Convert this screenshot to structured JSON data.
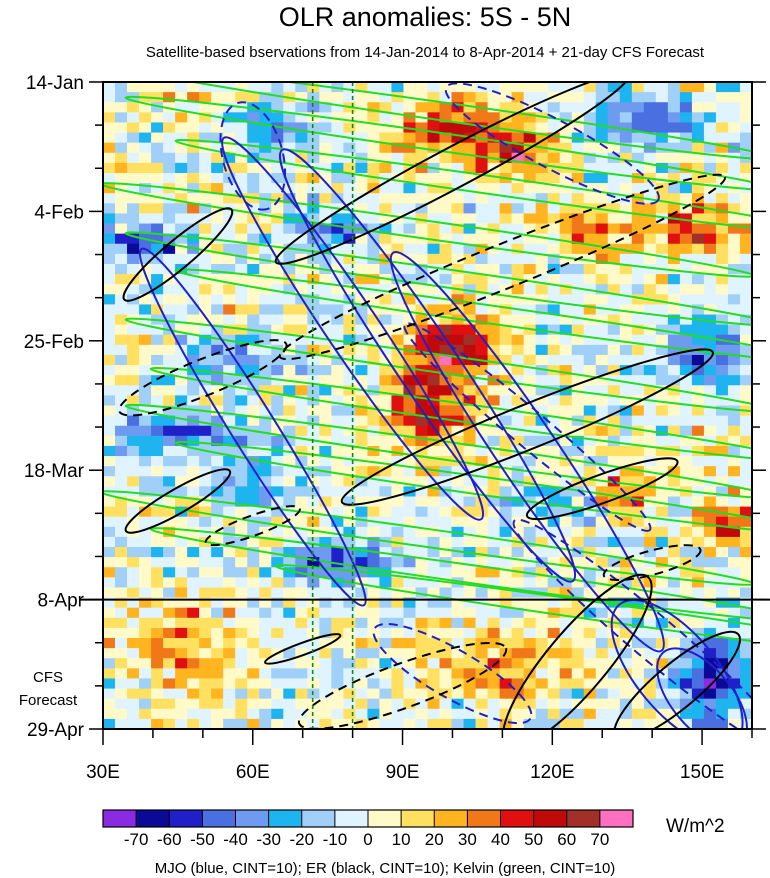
{
  "chart_data": {
    "type": "heatmap",
    "title": "OLR anomalies: 5S - 5N",
    "subtitle": "Satellite-based bservations from 14-Jan-2014 to 8-Apr-2014 + 21-day CFS Forecast",
    "x_ticks": [
      "30E",
      "60E",
      "90E",
      "120E",
      "150E"
    ],
    "x_tick_values": [
      30,
      60,
      90,
      120,
      150
    ],
    "xlim": [
      30,
      160
    ],
    "y_ticks": [
      "14-Jan",
      "4-Feb",
      "25-Feb",
      "18-Mar",
      "8-Apr",
      "29-Apr"
    ],
    "y_tick_days": [
      0,
      21,
      42,
      63,
      84,
      105
    ],
    "ylim_days": [
      0,
      105
    ],
    "y_axis_inverted": true,
    "forecast_label_lines": [
      "CFS",
      "Forecast"
    ],
    "forecast_start": "8-Apr",
    "reference_lines_x": [
      72,
      80
    ],
    "colorbar": {
      "unit": "W/m^2",
      "levels": [
        -70,
        -60,
        -50,
        -40,
        -30,
        -20,
        -10,
        0,
        10,
        20,
        30,
        40,
        50,
        60,
        70
      ],
      "level_labels": [
        "-70",
        "-60",
        "-50",
        "-40",
        "-30",
        "-20",
        "-10",
        "0",
        "10",
        "20",
        "30",
        "40",
        "50",
        "60",
        "70"
      ],
      "colors": [
        "#8a2be2",
        "#0a0a96",
        "#2020c8",
        "#4a6fe0",
        "#6e9bf0",
        "#1eb4f0",
        "#a0d0f8",
        "#e0f4ff",
        "#fffac8",
        "#ffe060",
        "#ffb420",
        "#f07818",
        "#e01010",
        "#c00a0a",
        "#a03028",
        "#ff70c0"
      ]
    },
    "overlay_caption": "MJO (blue, CINT=10); ER (black, CINT=10); Kelvin (green, CINT=10)",
    "overlays": [
      {
        "name": "MJO",
        "color": "#2020c8"
      },
      {
        "name": "ER",
        "color": "#000000"
      },
      {
        "name": "Kelvin",
        "color": "#22dd22"
      }
    ],
    "anomaly_field": {
      "baseline_noise": 24,
      "features": [
        {
          "lon": 100,
          "day": 8,
          "value": 55,
          "dlon": 10,
          "dday": 4
        },
        {
          "lon": 112,
          "day": 12,
          "value": 45,
          "dlon": 8,
          "dday": 4
        },
        {
          "lon": 64,
          "day": 7,
          "value": -35,
          "dlon": 6,
          "dday": 4
        },
        {
          "lon": 38,
          "day": 26,
          "value": -60,
          "dlon": 8,
          "dday": 3
        },
        {
          "lon": 75,
          "day": 24,
          "value": -45,
          "dlon": 8,
          "dday": 3
        },
        {
          "lon": 130,
          "day": 24,
          "value": 35,
          "dlon": 10,
          "dday": 4
        },
        {
          "lon": 150,
          "day": 24,
          "value": 40,
          "dlon": 8,
          "dday": 4
        },
        {
          "lon": 100,
          "day": 42,
          "value": 60,
          "dlon": 9,
          "dday": 5
        },
        {
          "lon": 95,
          "day": 52,
          "value": 58,
          "dlon": 8,
          "dday": 6
        },
        {
          "lon": 150,
          "day": 44,
          "value": -50,
          "dlon": 8,
          "dday": 4
        },
        {
          "lon": 45,
          "day": 57,
          "value": -55,
          "dlon": 12,
          "dday": 3
        },
        {
          "lon": 55,
          "day": 45,
          "value": -35,
          "dlon": 10,
          "dday": 4
        },
        {
          "lon": 78,
          "day": 78,
          "value": -60,
          "dlon": 12,
          "dday": 3
        },
        {
          "lon": 120,
          "day": 68,
          "value": -35,
          "dlon": 8,
          "dday": 3
        },
        {
          "lon": 135,
          "day": 66,
          "value": 35,
          "dlon": 8,
          "dday": 3
        },
        {
          "lon": 155,
          "day": 72,
          "value": 50,
          "dlon": 6,
          "dday": 3
        },
        {
          "lon": 152,
          "day": 97,
          "value": -65,
          "dlon": 7,
          "dday": 7
        },
        {
          "lon": 110,
          "day": 95,
          "value": 28,
          "dlon": 14,
          "dday": 6
        },
        {
          "lon": 45,
          "day": 92,
          "value": 22,
          "dlon": 12,
          "dday": 8
        },
        {
          "lon": 60,
          "day": 65,
          "value": -30,
          "dlon": 10,
          "dday": 4
        },
        {
          "lon": 140,
          "day": 6,
          "value": -40,
          "dlon": 10,
          "dday": 4
        }
      ]
    }
  }
}
